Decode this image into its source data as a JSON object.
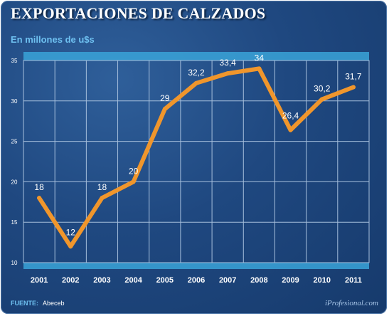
{
  "colors": {
    "line": "#f0962c",
    "grid": "#a6bfdc",
    "band": "#3aa3d8"
  },
  "footer": {
    "source_label": "FUENTE:",
    "source_value": "Abeceb",
    "brand": "iProfesional.com"
  },
  "chart_data": {
    "type": "line",
    "title": "EXPORTACIONES DE CALZADOS",
    "subtitle": "En millones de u$s",
    "xlabel": "",
    "ylabel": "",
    "x": [
      "2001",
      "2002",
      "2003",
      "2004",
      "2005",
      "2006",
      "2007",
      "2008",
      "2009",
      "2010",
      "2011"
    ],
    "series": [
      {
        "values": [
          18,
          12,
          18,
          20,
          29,
          32.2,
          33.4,
          34,
          26.4,
          30.2,
          31.7
        ],
        "labels": [
          "18",
          "12",
          "18",
          "20",
          "29",
          "32,2",
          "33,4",
          "34",
          "26,4",
          "30,2",
          "31,7"
        ]
      }
    ],
    "ylim": [
      10,
      35
    ],
    "yticks": [
      10,
      15,
      20,
      25,
      30,
      35
    ],
    "grid": true,
    "legend": "none"
  }
}
